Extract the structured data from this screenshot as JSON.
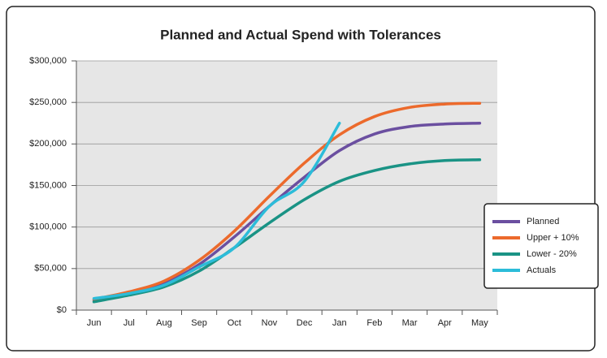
{
  "chart_data": {
    "type": "line",
    "title": "Planned and Actual Spend with Tolerances",
    "categories": [
      "Jun",
      "Jul",
      "Aug",
      "Sep",
      "Oct",
      "Nov",
      "Dec",
      "Jan",
      "Feb",
      "Mar",
      "Apr",
      "May"
    ],
    "series": [
      {
        "name": "Planned",
        "color": "#6b4fa0",
        "values": [
          12000,
          20000,
          32000,
          55000,
          88000,
          125000,
          160000,
          192000,
          212000,
          221000,
          224000,
          225000
        ]
      },
      {
        "name": "Upper + 10%",
        "color": "#ec6a2c",
        "values": [
          13000,
          22000,
          35000,
          60000,
          95000,
          137000,
          177000,
          211000,
          233000,
          244000,
          248000,
          249000
        ]
      },
      {
        "name": "Lower - 20%",
        "color": "#1a9385",
        "values": [
          10000,
          18000,
          28000,
          47000,
          75000,
          105000,
          133000,
          155000,
          168000,
          176000,
          180000,
          181000
        ]
      },
      {
        "name": "Actuals",
        "color": "#2cbcd9",
        "values": [
          14000,
          20000,
          30000,
          52000,
          75000,
          125000,
          155000,
          225000,
          null,
          null,
          null,
          null
        ]
      }
    ],
    "ylim": [
      0,
      300000
    ],
    "yticks": [
      {
        "value": 0,
        "label": "$0"
      },
      {
        "value": 50000,
        "label": "$50,000"
      },
      {
        "value": 100000,
        "label": "$100,000"
      },
      {
        "value": 150000,
        "label": "$150,000"
      },
      {
        "value": 200000,
        "label": "$200,000"
      },
      {
        "value": 250000,
        "label": "$250,000"
      },
      {
        "value": 300000,
        "label": "$300,000"
      }
    ],
    "grid": true,
    "legend": "right"
  }
}
